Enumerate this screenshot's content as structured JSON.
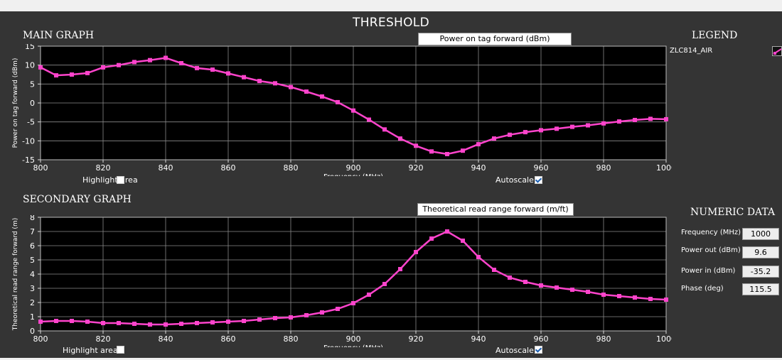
{
  "title": "THRESHOLD",
  "main_graph": {
    "section_label": "MAIN GRAPH",
    "dropdown_label": "Power on tag forward (dBm)",
    "highlight_label": "Highlight area",
    "highlight_checked": false,
    "autoscale_label": "Autoscale",
    "autoscale_checked": true
  },
  "secondary_graph": {
    "section_label": "SECONDARY GRAPH",
    "dropdown_label": "Theoretical read range forward (m/ft)",
    "highlight_label": "Highlight area",
    "highlight_checked": false,
    "autoscale_label": "Autoscale",
    "autoscale_checked": true
  },
  "legend": {
    "title": "LEGEND",
    "items": [
      {
        "name": "ZLC814_AIR",
        "color": "#ff44cc"
      }
    ]
  },
  "numeric_data": {
    "title": "NUMERIC DATA",
    "fields": [
      {
        "label": "Frequency (MHz)",
        "value": "1000"
      },
      {
        "label": "Power out (dBm)",
        "value": "9.6"
      },
      {
        "label": "Power in (dBm)",
        "value": "-35.2"
      },
      {
        "label": "Phase (deg)",
        "value": "115.5"
      }
    ]
  },
  "chart_data": [
    {
      "type": "line",
      "xlabel": "Frequency (MHz)",
      "ylabel": "Power on tag forward (dBm)",
      "xlim": [
        800,
        1000
      ],
      "ylim": [
        -15,
        15
      ],
      "xticks": [
        800,
        820,
        840,
        860,
        880,
        900,
        920,
        940,
        960,
        980,
        1000
      ],
      "yticks": [
        15,
        10,
        5,
        0,
        -5,
        -10,
        -15
      ],
      "grid": true,
      "series": [
        {
          "name": "ZLC814_AIR",
          "color": "#ff44cc",
          "x": [
            800,
            805,
            810,
            815,
            820,
            825,
            830,
            835,
            840,
            845,
            850,
            855,
            860,
            865,
            870,
            875,
            880,
            885,
            890,
            895,
            900,
            905,
            910,
            915,
            920,
            925,
            930,
            935,
            940,
            945,
            950,
            955,
            960,
            965,
            970,
            975,
            980,
            985,
            990,
            995,
            1000
          ],
          "y": [
            9.4,
            7.3,
            7.5,
            7.9,
            9.4,
            10.0,
            10.8,
            11.3,
            11.9,
            10.5,
            9.2,
            8.8,
            7.8,
            6.8,
            5.8,
            5.2,
            4.2,
            3.0,
            1.7,
            0.2,
            -2.0,
            -4.4,
            -7.0,
            -9.4,
            -11.3,
            -12.8,
            -13.5,
            -12.6,
            -10.9,
            -9.4,
            -8.4,
            -7.7,
            -7.2,
            -6.8,
            -6.3,
            -5.9,
            -5.4,
            -4.9,
            -4.5,
            -4.2,
            -4.3
          ]
        }
      ]
    },
    {
      "type": "line",
      "xlabel": "Frequency (MHz)",
      "ylabel": "Theoretical read range forward (m)",
      "xlim": [
        800,
        1000
      ],
      "ylim": [
        0,
        8
      ],
      "xticks": [
        800,
        820,
        840,
        860,
        880,
        900,
        920,
        940,
        960,
        980,
        1000
      ],
      "yticks": [
        8,
        7,
        6,
        5,
        4,
        3,
        2,
        1,
        0
      ],
      "grid": true,
      "series": [
        {
          "name": "ZLC814_AIR",
          "color": "#ff44cc",
          "x": [
            800,
            805,
            810,
            815,
            820,
            825,
            830,
            835,
            840,
            845,
            850,
            855,
            860,
            865,
            870,
            875,
            880,
            885,
            890,
            895,
            900,
            905,
            910,
            915,
            920,
            925,
            930,
            935,
            940,
            945,
            950,
            955,
            960,
            965,
            970,
            975,
            980,
            985,
            990,
            995,
            1000
          ],
          "y": [
            0.65,
            0.7,
            0.7,
            0.65,
            0.55,
            0.55,
            0.5,
            0.45,
            0.45,
            0.5,
            0.55,
            0.6,
            0.65,
            0.7,
            0.8,
            0.9,
            0.95,
            1.1,
            1.3,
            1.55,
            1.95,
            2.55,
            3.3,
            4.35,
            5.55,
            6.5,
            7.0,
            6.35,
            5.2,
            4.3,
            3.75,
            3.45,
            3.2,
            3.05,
            2.9,
            2.75,
            2.55,
            2.45,
            2.35,
            2.25,
            2.2
          ]
        }
      ]
    }
  ]
}
